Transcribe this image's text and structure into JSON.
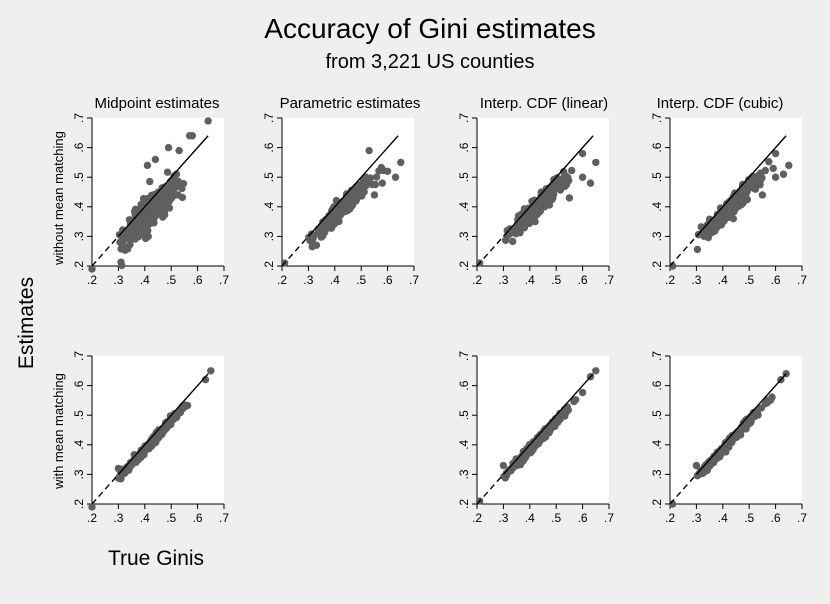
{
  "figure": {
    "title": "Accuracy of Gini estimates",
    "subtitle": "from 3,221 US counties",
    "xlabel": "True Ginis",
    "ylabel": "Estimates",
    "row_labels": [
      "without mean matching",
      "with mean matching"
    ],
    "point_color": "#5f5f5f",
    "panel_background": "#ffffff",
    "page_background": "#efefef"
  },
  "chart_data": [
    {
      "type": "scatter",
      "title": "Midpoint estimates",
      "row_label": "without mean matching",
      "column": 1,
      "row": 1,
      "spread": 0.028,
      "slope": 0.9,
      "offset": 0.0,
      "outliers": [
        [
          0.2,
          0.19
        ],
        [
          0.64,
          0.69
        ],
        [
          0.57,
          0.64
        ],
        [
          0.58,
          0.64
        ],
        [
          0.49,
          0.6
        ],
        [
          0.44,
          0.56
        ],
        [
          0.41,
          0.54
        ],
        [
          0.53,
          0.59
        ]
      ],
      "line": [
        0.2,
        0.64
      ],
      "xlim": [
        0.2,
        0.7
      ],
      "ylim": [
        0.2,
        0.7
      ],
      "xticks": [
        ".2",
        ".3",
        ".4",
        ".5",
        ".6",
        ".7"
      ],
      "yticks": [
        ".2",
        ".3",
        ".4",
        ".5",
        ".6",
        ".7"
      ]
    },
    {
      "type": "scatter",
      "title": "Parametric estimates",
      "row_label": "without mean matching",
      "column": 2,
      "row": 1,
      "spread": 0.014,
      "slope": 0.92,
      "offset": 0.0,
      "outliers": [
        [
          0.21,
          0.21
        ],
        [
          0.6,
          0.52
        ],
        [
          0.63,
          0.5
        ],
        [
          0.55,
          0.44
        ],
        [
          0.58,
          0.48
        ],
        [
          0.65,
          0.55
        ],
        [
          0.53,
          0.59
        ]
      ],
      "line": [
        0.2,
        0.64
      ],
      "xlim": [
        0.2,
        0.7
      ],
      "ylim": [
        0.2,
        0.7
      ],
      "xticks": [
        ".2",
        ".3",
        ".4",
        ".5",
        ".6",
        ".7"
      ],
      "yticks": [
        ".2",
        ".3",
        ".4",
        ".5",
        ".6",
        ".7"
      ]
    },
    {
      "type": "scatter",
      "title": "Interp. CDF (linear)",
      "row_label": "without mean matching",
      "column": 3,
      "row": 1,
      "spread": 0.014,
      "slope": 0.93,
      "offset": 0.0,
      "outliers": [
        [
          0.21,
          0.21
        ],
        [
          0.65,
          0.55
        ],
        [
          0.6,
          0.5
        ],
        [
          0.63,
          0.48
        ],
        [
          0.55,
          0.43
        ],
        [
          0.42,
          0.35
        ],
        [
          0.6,
          0.58
        ]
      ],
      "line": [
        0.2,
        0.64
      ],
      "xlim": [
        0.2,
        0.7
      ],
      "ylim": [
        0.2,
        0.7
      ],
      "xticks": [
        ".2",
        ".3",
        ".4",
        ".5",
        ".6",
        ".7"
      ],
      "yticks": [
        ".2",
        ".3",
        ".4",
        ".5",
        ".6",
        ".7"
      ]
    },
    {
      "type": "scatter",
      "title": "Interp. CDF (cubic)",
      "row_label": "without mean matching",
      "column": 4,
      "row": 1,
      "spread": 0.014,
      "slope": 0.93,
      "offset": 0.0,
      "outliers": [
        [
          0.21,
          0.2
        ],
        [
          0.65,
          0.54
        ],
        [
          0.6,
          0.5
        ],
        [
          0.63,
          0.51
        ],
        [
          0.55,
          0.44
        ],
        [
          0.44,
          0.36
        ],
        [
          0.6,
          0.58
        ]
      ],
      "line": [
        0.2,
        0.64
      ],
      "xlim": [
        0.2,
        0.7
      ],
      "ylim": [
        0.2,
        0.7
      ],
      "xticks": [
        ".2",
        ".3",
        ".4",
        ".5",
        ".6",
        ".7"
      ],
      "yticks": [
        ".2",
        ".3",
        ".4",
        ".5",
        ".6",
        ".7"
      ]
    },
    {
      "type": "scatter",
      "title": "",
      "row_label": "with mean matching",
      "column": 1,
      "row": 2,
      "spread": 0.006,
      "slope": 0.96,
      "offset": 0.0,
      "outliers": [
        [
          0.2,
          0.19
        ],
        [
          0.65,
          0.65
        ],
        [
          0.3,
          0.32
        ],
        [
          0.63,
          0.62
        ]
      ],
      "line": [
        0.2,
        0.64
      ],
      "xlim": [
        0.2,
        0.7
      ],
      "ylim": [
        0.2,
        0.7
      ],
      "xticks": [
        ".2",
        ".3",
        ".4",
        ".5",
        ".6",
        ".7"
      ],
      "yticks": [
        ".2",
        ".3",
        ".4",
        ".5",
        ".6",
        ".7"
      ]
    },
    {
      "type": "scatter",
      "title": "",
      "row_label": "with mean matching",
      "column": 3,
      "row": 2,
      "spread": 0.006,
      "slope": 0.96,
      "offset": 0.0,
      "outliers": [
        [
          0.21,
          0.21
        ],
        [
          0.65,
          0.65
        ],
        [
          0.3,
          0.33
        ],
        [
          0.63,
          0.63
        ]
      ],
      "line": [
        0.2,
        0.64
      ],
      "xlim": [
        0.2,
        0.7
      ],
      "ylim": [
        0.2,
        0.7
      ],
      "xticks": [
        ".2",
        ".3",
        ".4",
        ".5",
        ".6",
        ".7"
      ],
      "yticks": [
        ".2",
        ".3",
        ".4",
        ".5",
        ".6",
        ".7"
      ]
    },
    {
      "type": "scatter",
      "title": "",
      "row_label": "with mean matching",
      "column": 4,
      "row": 2,
      "spread": 0.006,
      "slope": 0.96,
      "offset": 0.0,
      "outliers": [
        [
          0.21,
          0.2
        ],
        [
          0.64,
          0.64
        ],
        [
          0.3,
          0.33
        ],
        [
          0.62,
          0.62
        ]
      ],
      "line": [
        0.2,
        0.64
      ],
      "xlim": [
        0.2,
        0.7
      ],
      "ylim": [
        0.2,
        0.7
      ],
      "xticks": [
        ".2",
        ".3",
        ".4",
        ".5",
        ".6",
        ".7"
      ],
      "yticks": [
        ".2",
        ".3",
        ".4",
        ".5",
        ".6",
        ".7"
      ]
    }
  ]
}
